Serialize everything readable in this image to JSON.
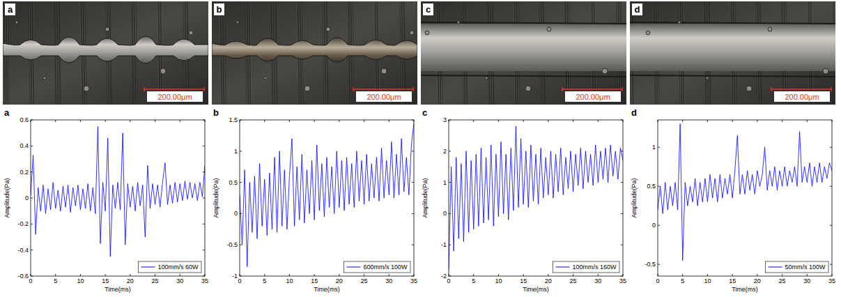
{
  "images": [
    {
      "label": "a",
      "scale_bar": "200.00μm"
    },
    {
      "label": "b",
      "scale_bar": "200.00μm"
    },
    {
      "label": "c",
      "scale_bar": "200.00μm"
    },
    {
      "label": "d",
      "scale_bar": "200.00μm"
    }
  ],
  "chart_data": [
    {
      "type": "line",
      "label": "a",
      "x_label": "Time(ms)",
      "y_label": "Amplitude(Pa)",
      "xlim": [
        0,
        35
      ],
      "xticks": [
        0,
        5,
        10,
        15,
        20,
        25,
        30,
        35
      ],
      "ylim": [
        -0.6,
        0.6
      ],
      "yticks": [
        -0.6,
        -0.4,
        -0.2,
        0,
        0.2,
        0.4,
        0.6
      ],
      "legend": "lower right",
      "x": [
        0,
        0.5,
        1,
        1.5,
        2,
        2.5,
        3,
        3.5,
        4,
        4.5,
        5,
        5.5,
        6,
        6.5,
        7,
        7.5,
        8,
        8.5,
        9,
        9.5,
        10,
        10.5,
        11,
        11.5,
        12,
        12.5,
        13,
        13.5,
        14,
        14.5,
        15,
        15.5,
        16,
        16.5,
        17,
        17.5,
        18,
        18.5,
        19,
        19.5,
        20,
        20.5,
        21,
        21.5,
        22,
        22.5,
        23,
        23.5,
        24,
        24.5,
        25,
        25.5,
        26,
        26.5,
        27,
        27.5,
        28,
        28.5,
        29,
        29.5,
        30,
        30.5,
        31,
        31.5,
        32,
        32.5,
        33,
        33.5,
        34,
        34.5,
        35
      ],
      "series": [
        {
          "name": "100mm/s 60W",
          "color": "#0000ff",
          "values": [
            0.02,
            0.33,
            -0.28,
            0.08,
            -0.1,
            0.1,
            -0.12,
            0.07,
            -0.09,
            0.12,
            -0.08,
            0.06,
            -0.1,
            0.09,
            -0.07,
            0.1,
            -0.11,
            0.08,
            -0.06,
            0.1,
            -0.09,
            0.07,
            -0.08,
            0.11,
            -0.1,
            0.08,
            -0.12,
            0.55,
            -0.35,
            0.12,
            -0.1,
            0.46,
            -0.45,
            0.1,
            -0.08,
            0.12,
            -0.09,
            0.5,
            -0.36,
            0.11,
            -0.07,
            0.09,
            -0.1,
            0.12,
            -0.06,
            0.1,
            -0.3,
            0.25,
            -0.08,
            0.11,
            -0.05,
            0.1,
            -0.07,
            0.12,
            0.27,
            -0.05,
            0.1,
            -0.04,
            0.12,
            -0.03,
            0.11,
            -0.02,
            0.13,
            -0.01,
            0.12,
            0,
            0.11,
            -0.02,
            0.12,
            0.01,
            0.25
          ]
        }
      ]
    },
    {
      "type": "line",
      "label": "b",
      "x_label": "Time(ms)",
      "y_label": "Amplitude(Pa)",
      "xlim": [
        0,
        35
      ],
      "xticks": [
        0,
        5,
        10,
        15,
        20,
        25,
        30,
        35
      ],
      "ylim": [
        -1,
        1.5
      ],
      "yticks": [
        -1,
        -0.5,
        0,
        0.5,
        1,
        1.5
      ],
      "legend": "lower right",
      "x": [
        0,
        0.5,
        1,
        1.5,
        2,
        2.5,
        3,
        3.5,
        4,
        4.5,
        5,
        5.5,
        6,
        6.5,
        7,
        7.5,
        8,
        8.5,
        9,
        9.5,
        10,
        10.5,
        11,
        11.5,
        12,
        12.5,
        13,
        13.5,
        14,
        14.5,
        15,
        15.5,
        16,
        16.5,
        17,
        17.5,
        18,
        18.5,
        19,
        19.5,
        20,
        20.5,
        21,
        21.5,
        22,
        22.5,
        23,
        23.5,
        24,
        24.5,
        25,
        25.5,
        26,
        26.5,
        27,
        27.5,
        28,
        28.5,
        29,
        29.5,
        30,
        30.5,
        31,
        31.5,
        32,
        32.5,
        33,
        33.5,
        34,
        34.5,
        35
      ],
      "series": [
        {
          "name": "600mm/s 100W",
          "color": "#0000ff",
          "values": [
            0.3,
            -0.5,
            0.7,
            -0.85,
            0.5,
            -0.3,
            0.6,
            -0.4,
            0.8,
            -0.2,
            0.55,
            -0.35,
            0.65,
            -0.25,
            0.9,
            -0.3,
            1.0,
            -0.2,
            0.7,
            -0.25,
            0.6,
            1.2,
            -0.2,
            0.75,
            -0.1,
            0.95,
            -0.15,
            0.7,
            0.0,
            0.85,
            -0.1,
            1.1,
            0.05,
            0.8,
            -0.05,
            0.9,
            0.1,
            0.75,
            0.0,
            1.0,
            0.1,
            0.85,
            0.05,
            0.9,
            0.15,
            0.8,
            0.1,
            1.0,
            0.2,
            0.85,
            0.15,
            0.95,
            0.2,
            0.8,
            0.25,
            0.9,
            0.2,
            1.05,
            0.25,
            0.85,
            0.3,
            1.15,
            0.25,
            0.95,
            0.3,
            1.2,
            0.35,
            0.9,
            0.3,
            1.1,
            1.45
          ]
        }
      ]
    },
    {
      "type": "line",
      "label": "c",
      "x_label": "Time(ms)",
      "y_label": "Amplitude(Pa)",
      "xlim": [
        0,
        35
      ],
      "xticks": [
        0,
        5,
        10,
        15,
        20,
        25,
        30,
        35
      ],
      "ylim": [
        -2,
        3
      ],
      "yticks": [
        -2,
        -1,
        0,
        1,
        2,
        3
      ],
      "legend": "lower right",
      "x": [
        0,
        0.5,
        1,
        1.5,
        2,
        2.5,
        3,
        3.5,
        4,
        4.5,
        5,
        5.5,
        6,
        6.5,
        7,
        7.5,
        8,
        8.5,
        9,
        9.5,
        10,
        10.5,
        11,
        11.5,
        12,
        12.5,
        13,
        13.5,
        14,
        14.5,
        15,
        15.5,
        16,
        16.5,
        17,
        17.5,
        18,
        18.5,
        19,
        19.5,
        20,
        20.5,
        21,
        21.5,
        22,
        22.5,
        23,
        23.5,
        24,
        24.5,
        25,
        25.5,
        26,
        26.5,
        27,
        27.5,
        28,
        28.5,
        29,
        29.5,
        30,
        30.5,
        31,
        31.5,
        32,
        32.5,
        33,
        33.5,
        34,
        34.5,
        35
      ],
      "series": [
        {
          "name": "100mm/s 160W",
          "color": "#0000ff",
          "values": [
            -1.8,
            1.5,
            -1.2,
            1.8,
            -0.8,
            1.6,
            -0.9,
            2.0,
            -0.6,
            1.7,
            -0.5,
            1.9,
            -0.4,
            2.1,
            -0.3,
            1.8,
            -0.2,
            2.2,
            -0.4,
            1.9,
            -0.1,
            2.3,
            0.0,
            1.9,
            -0.2,
            2.1,
            0.1,
            2.8,
            0.2,
            2.4,
            0.3,
            2.0,
            0.2,
            2.2,
            0.4,
            1.9,
            0.3,
            2.1,
            0.5,
            1.8,
            0.6,
            2.0,
            0.5,
            1.9,
            0.7,
            2.1,
            0.6,
            1.8,
            0.8,
            2.0,
            0.7,
            1.9,
            0.9,
            2.1,
            0.8,
            2.0,
            1.0,
            1.9,
            0.9,
            2.2,
            1.0,
            2.0,
            1.1,
            2.1,
            1.0,
            2.2,
            1.2,
            2.0,
            1.1,
            2.1,
            1.7
          ]
        }
      ]
    },
    {
      "type": "line",
      "label": "d",
      "x_label": "Time(ms)",
      "y_label": "Amplitude(Pa)",
      "xlim": [
        0,
        35
      ],
      "xticks": [
        0,
        5,
        10,
        15,
        20,
        25,
        30,
        35
      ],
      "ylim": [
        -0.65,
        1.35
      ],
      "yticks": [
        -0.5,
        0,
        0.5,
        1
      ],
      "legend": "lower right",
      "x": [
        0,
        0.5,
        1,
        1.5,
        2,
        2.5,
        3,
        3.5,
        4,
        4.5,
        5,
        5.5,
        6,
        6.5,
        7,
        7.5,
        8,
        8.5,
        9,
        9.5,
        10,
        10.5,
        11,
        11.5,
        12,
        12.5,
        13,
        13.5,
        14,
        14.5,
        15,
        15.5,
        16,
        16.5,
        17,
        17.5,
        18,
        18.5,
        19,
        19.5,
        20,
        20.5,
        21,
        21.5,
        22,
        22.5,
        23,
        23.5,
        24,
        24.5,
        25,
        25.5,
        26,
        26.5,
        27,
        27.5,
        28,
        28.5,
        29,
        29.5,
        30,
        30.5,
        31,
        31.5,
        32,
        32.5,
        33,
        33.5,
        34,
        34.5,
        35
      ],
      "series": [
        {
          "name": "50mm/s 100W",
          "color": "#0000ff",
          "values": [
            0.2,
            0.5,
            0.15,
            0.55,
            0.2,
            0.5,
            0.25,
            0.55,
            0.2,
            1.3,
            -0.45,
            0.55,
            0.25,
            0.5,
            0.3,
            0.6,
            0.25,
            0.55,
            0.3,
            0.6,
            0.3,
            0.65,
            0.35,
            0.6,
            0.3,
            0.65,
            0.35,
            0.6,
            0.4,
            0.65,
            0.35,
            0.7,
            1.15,
            0.4,
            0.65,
            0.4,
            0.7,
            0.45,
            0.65,
            0.4,
            0.7,
            0.5,
            0.65,
            1.0,
            0.45,
            0.7,
            0.5,
            0.75,
            0.45,
            0.7,
            0.5,
            0.75,
            0.5,
            0.7,
            0.55,
            0.75,
            0.5,
            1.2,
            0.55,
            0.75,
            0.55,
            0.8,
            0.5,
            0.75,
            0.55,
            0.8,
            0.55,
            0.75,
            0.6,
            0.8,
            0.7
          ]
        }
      ]
    }
  ]
}
